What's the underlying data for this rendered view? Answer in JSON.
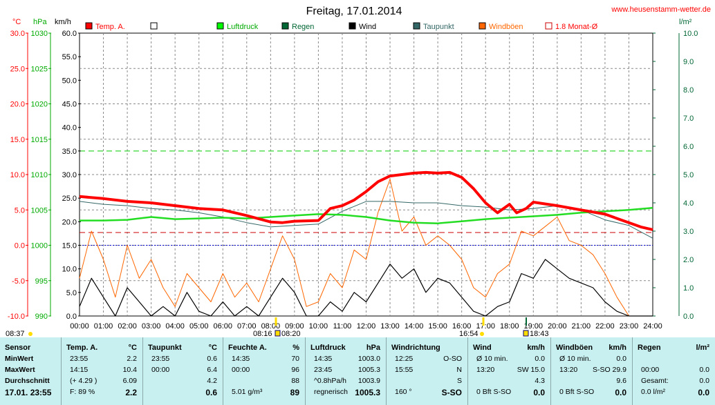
{
  "title": "Freitag, 17.01.2014",
  "site": "www.heusenstamm-wetter.de",
  "units": {
    "temp": "°C",
    "pressure": "hPa",
    "wind": "km/h",
    "rain": "l/m²"
  },
  "colors": {
    "temp": "#ff0000",
    "pressure": "#00cc00",
    "rain": "#006633",
    "wind": "#000000",
    "dew": "#336666",
    "gust": "#ff6600",
    "avg": "#cc0000",
    "grid": "#888888"
  },
  "legend": [
    {
      "label": "Temp. A.",
      "color": "#ff0000",
      "style": "box"
    },
    {
      "label": "",
      "color": "#ffffff",
      "style": "empty"
    },
    {
      "label": "Luftdruck",
      "color": "#00ff00",
      "style": "box"
    },
    {
      "label": "Regen",
      "color": "#006633",
      "style": "box"
    },
    {
      "label": "Wind",
      "color": "#000000",
      "style": "box"
    },
    {
      "label": "Taupunkt",
      "color": "#336666",
      "style": "box"
    },
    {
      "label": "Windböen",
      "color": "#ff6600",
      "style": "box"
    },
    {
      "label": "1.8 Monat-Ø",
      "color": "#cc0000",
      "style": "outline"
    }
  ],
  "events": {
    "sunrise_prev": "08:37",
    "sunrise": "08:16",
    "sunrise2": "08:20",
    "sunset": "16:54",
    "moon": "18:43"
  },
  "chart_data": {
    "type": "line",
    "x_ticks": [
      "00:00",
      "01:00",
      "02:00",
      "03:00",
      "04:00",
      "05:00",
      "06:00",
      "07:00",
      "08:00",
      "09:00",
      "10:00",
      "11:00",
      "12:00",
      "13:00",
      "14:00",
      "15:00",
      "16:00",
      "17:00",
      "18:00",
      "19:00",
      "20:00",
      "21:00",
      "22:00",
      "23:00",
      "24:00"
    ],
    "axes": {
      "temp": {
        "range": [
          -10,
          30
        ],
        "ticks": [
          "30.0",
          "25.0",
          "20.0",
          "15.0",
          "10.0",
          "5.0",
          "0.0",
          "-5.0",
          "-10.0"
        ]
      },
      "pressure": {
        "range": [
          990,
          1030
        ],
        "ticks": [
          "1030",
          "1025",
          "1020",
          "1015",
          "1010",
          "1005",
          "1000",
          "995",
          "990"
        ]
      },
      "wind": {
        "range": [
          0,
          60
        ],
        "ticks": [
          "60.0",
          "55.0",
          "50.0",
          "45.0",
          "40.0",
          "35.0",
          "30.0",
          "25.0",
          "20.0",
          "15.0",
          "10.0",
          "5.0",
          "0.0"
        ]
      },
      "rain": {
        "range": [
          0,
          10
        ],
        "ticks": [
          "10.0",
          "9.0",
          "8.0",
          "7.0",
          "6.0",
          "5.0",
          "4.0",
          "3.0",
          "2.0",
          "1.0",
          "0.0"
        ]
      }
    },
    "reference_lines": {
      "temp_month_avg": 1.8,
      "wind_dashed": 35,
      "zero_line": 0
    },
    "series": [
      {
        "name": "Temp. A.",
        "axis": "temp",
        "x": [
          0,
          1,
          2,
          3,
          4,
          5,
          6,
          7,
          8,
          8.5,
          9,
          10,
          10.5,
          11,
          11.5,
          12,
          12.5,
          13,
          13.5,
          14,
          14.5,
          15,
          15.5,
          16,
          16.5,
          17,
          17.5,
          18,
          18.3,
          18.7,
          19,
          20,
          21,
          22,
          22.5,
          23,
          23.5,
          24
        ],
        "values": [
          6.9,
          6.6,
          6.2,
          6.0,
          5.6,
          5.2,
          5.0,
          4.2,
          3.3,
          3.2,
          3.4,
          3.5,
          5.2,
          5.6,
          6.4,
          7.6,
          9.0,
          9.8,
          10.0,
          10.2,
          10.3,
          10.2,
          10.3,
          9.6,
          8.0,
          6.0,
          4.6,
          5.8,
          4.6,
          5.2,
          6.1,
          5.6,
          5.0,
          4.4,
          3.8,
          3.2,
          2.6,
          2.2
        ]
      },
      {
        "name": "Luftdruck",
        "axis": "pressure",
        "x": [
          0,
          1,
          2,
          3,
          4,
          5,
          6,
          7,
          8,
          9,
          10,
          11,
          12,
          13,
          14,
          15,
          16,
          17,
          18,
          19,
          20,
          21,
          22,
          23,
          24
        ],
        "values": [
          1003.5,
          1003.5,
          1003.6,
          1004.0,
          1003.7,
          1003.8,
          1003.9,
          1003.8,
          1004.0,
          1004.2,
          1004.4,
          1004.3,
          1004.0,
          1003.5,
          1003.2,
          1003.1,
          1003.4,
          1003.7,
          1003.9,
          1004.1,
          1004.3,
          1004.6,
          1004.8,
          1005.0,
          1005.3
        ]
      },
      {
        "name": "Taupunkt",
        "axis": "temp",
        "x": [
          0,
          1,
          2,
          3,
          4,
          5,
          6,
          7,
          8,
          9,
          10,
          11,
          12,
          13,
          14,
          15,
          16,
          17,
          18,
          19,
          20,
          21,
          22,
          23,
          24
        ],
        "values": [
          6.2,
          5.8,
          5.6,
          5.2,
          5.0,
          4.6,
          4.0,
          3.2,
          2.6,
          2.8,
          3.0,
          4.8,
          6.2,
          6.2,
          6.0,
          6.0,
          5.6,
          5.4,
          5.0,
          5.2,
          5.6,
          5.0,
          3.6,
          2.8,
          1.0
        ]
      },
      {
        "name": "Wind",
        "axis": "wind",
        "x": [
          0,
          0.5,
          1,
          1.5,
          2,
          2.5,
          3,
          3.5,
          4,
          4.5,
          5,
          5.5,
          6,
          6.5,
          7,
          7.5,
          8,
          8.5,
          9,
          9.5,
          10,
          10.5,
          11,
          11.5,
          12,
          12.5,
          13,
          13.5,
          14,
          14.5,
          15,
          15.5,
          16,
          16.5,
          17,
          17.5,
          18,
          18.5,
          19,
          19.5,
          20,
          20.5,
          21,
          21.5,
          22,
          22.5,
          23,
          23.5,
          24
        ],
        "values": [
          2,
          8,
          4,
          0,
          6,
          3,
          0,
          2,
          0,
          5,
          1,
          0,
          3,
          0,
          2,
          0,
          4,
          8,
          5,
          0,
          0,
          3,
          1,
          5,
          3,
          7,
          11,
          8,
          10,
          5,
          8,
          7,
          4,
          1,
          0,
          2,
          3,
          9,
          8,
          12,
          10,
          8,
          7,
          6,
          3,
          1,
          0,
          0,
          0
        ]
      },
      {
        "name": "Windböen",
        "axis": "wind",
        "x": [
          0,
          0.5,
          1,
          1.5,
          2,
          2.5,
          3,
          3.5,
          4,
          4.5,
          5,
          5.5,
          6,
          6.5,
          7,
          7.5,
          8,
          8.5,
          9,
          9.5,
          10,
          10.5,
          11,
          11.5,
          12,
          12.5,
          13,
          13.5,
          14,
          14.5,
          15,
          15.5,
          16,
          16.5,
          17,
          17.5,
          18,
          18.5,
          19,
          19.5,
          20,
          20.5,
          21,
          21.5,
          22,
          22.5,
          23,
          23.5,
          24
        ],
        "values": [
          8,
          18,
          12,
          4,
          15,
          8,
          12,
          6,
          2,
          9,
          6,
          3,
          9,
          4,
          7,
          3,
          10,
          17,
          12,
          2,
          3,
          9,
          6,
          14,
          12,
          22,
          29,
          18,
          21,
          15,
          17,
          15,
          12,
          6,
          4,
          9,
          11,
          18,
          17,
          19,
          21,
          16,
          15,
          13,
          9,
          4,
          0,
          0,
          0
        ]
      }
    ]
  },
  "table": {
    "columns": [
      {
        "title": "Sensor",
        "unit": "",
        "rows": [
          [
            "MinWert"
          ],
          [
            "MaxWert"
          ],
          [
            "Durchschnitt"
          ],
          [
            "17.01. 23:55"
          ]
        ]
      },
      {
        "title": "Temp. A.",
        "unit": "°C",
        "rows": [
          [
            "23:55",
            "2.2"
          ],
          [
            "14:15",
            "10.4"
          ],
          [
            "(+ 4.29 )",
            "6.09"
          ],
          [
            "F: 89 %",
            "2.2"
          ]
        ]
      },
      {
        "title": "Taupunkt",
        "unit": "°C",
        "rows": [
          [
            "23:55",
            "0.6"
          ],
          [
            "00:00",
            "6.4"
          ],
          [
            "",
            "4.2"
          ],
          [
            "",
            "0.6"
          ]
        ]
      },
      {
        "title": "Feuchte A.",
        "unit": "%",
        "rows": [
          [
            "14:35",
            "70"
          ],
          [
            "00:00",
            "96"
          ],
          [
            "",
            "88"
          ],
          [
            "5.01 g/m³",
            "89"
          ]
        ]
      },
      {
        "title": "Luftdruck",
        "unit": "hPa",
        "rows": [
          [
            "14:35",
            "1003.0"
          ],
          [
            "23:45",
            "1005.3"
          ],
          [
            "^0.8hPa/h",
            "1003.9"
          ],
          [
            "regnerisch",
            "1005.3"
          ]
        ]
      },
      {
        "title": "Windrichtung",
        "unit": "",
        "rows": [
          [
            "12:25",
            "O-SO"
          ],
          [
            "15:55",
            "N"
          ],
          [
            "",
            "S"
          ],
          [
            "160 °",
            "S-SO"
          ]
        ]
      },
      {
        "title": "Wind",
        "unit": "km/h",
        "rows": [
          [
            "Ø 10 min.",
            "0.0"
          ],
          [
            "13:20",
            "SW 15.0"
          ],
          [
            "",
            "4.3"
          ],
          [
            "0 Bft S-SO",
            "0.0"
          ]
        ]
      },
      {
        "title": "Windböen",
        "unit": "km/h",
        "rows": [
          [
            "Ø 10 min.",
            "0.0"
          ],
          [
            "13:20",
            "S-SO 29.9"
          ],
          [
            "",
            "9.6"
          ],
          [
            "0 Bft S-SO",
            "0.0"
          ]
        ]
      },
      {
        "title": "Regen",
        "unit": "l/m²",
        "rows": [
          [
            "",
            ""
          ],
          [
            "00:00",
            "0.0"
          ],
          [
            "Gesamt:",
            "0.0"
          ],
          [
            "0.0 l/m²",
            "0.0"
          ]
        ]
      }
    ]
  }
}
